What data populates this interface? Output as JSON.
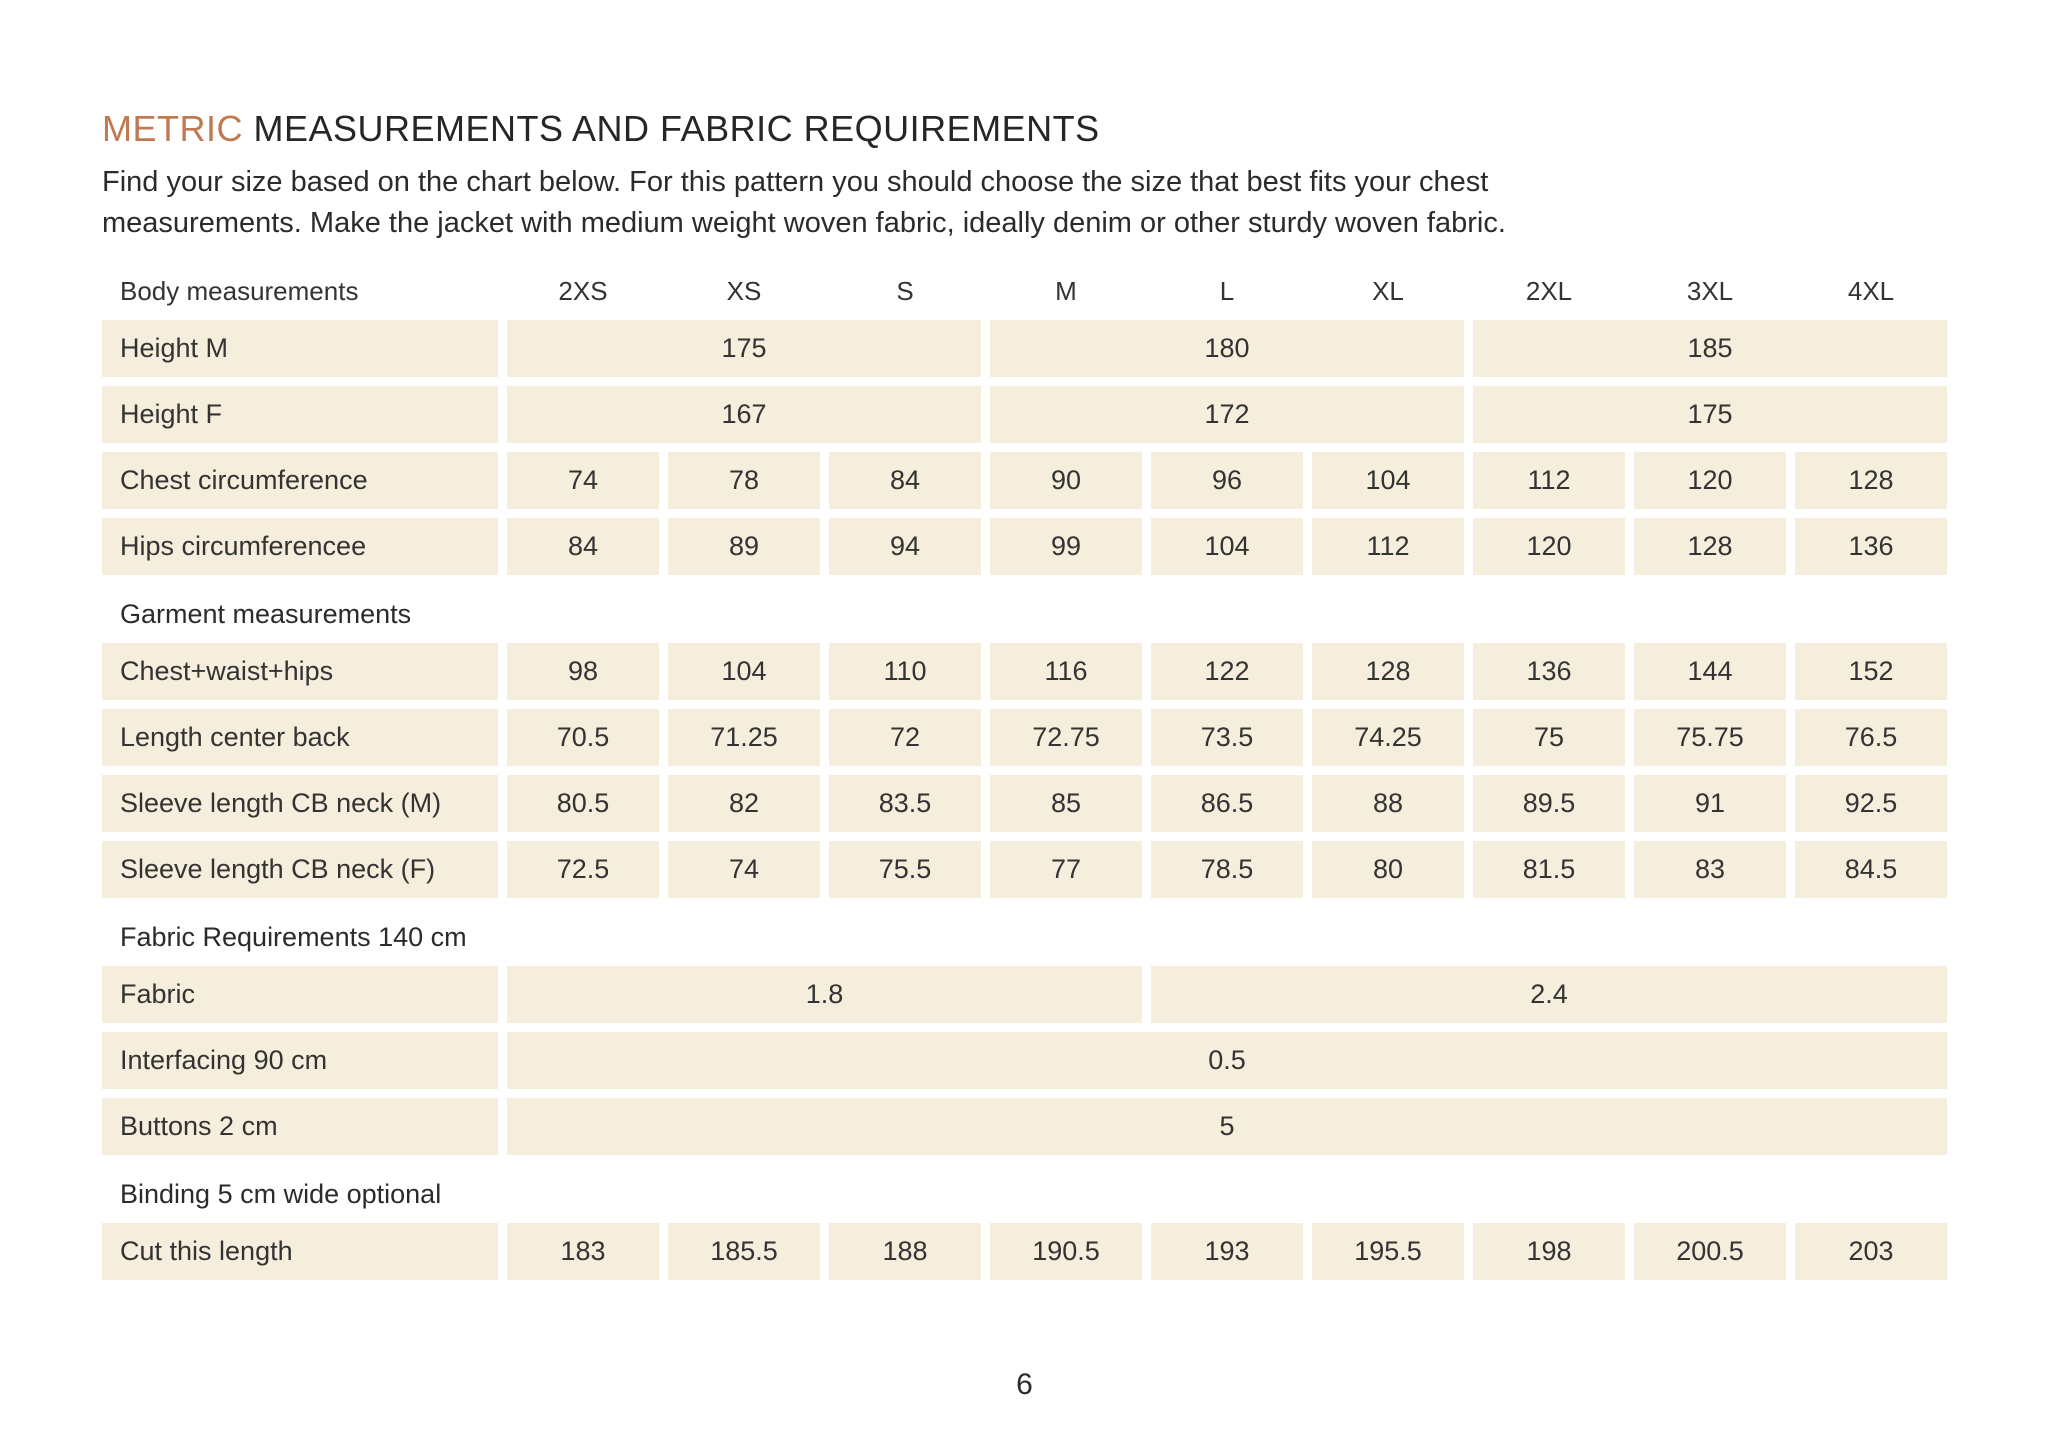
{
  "page": {
    "title": {
      "accent": "METRIC",
      "rest": " MEASUREMENTS AND FABRIC REQUIREMENTS"
    },
    "intro": {
      "line1": "Find your size based on the chart below. For this pattern you should choose the size that best fits your chest",
      "line2": "measurements. Make the jacket with medium weight woven fabric, ideally denim or other sturdy woven fabric."
    },
    "page_number": "6"
  },
  "colors": {
    "accent": "#bf7a52",
    "cell_bg": "#f5eedc",
    "text": "#2e2e2e"
  },
  "table": {
    "header": {
      "label": "Body measurements",
      "sizes": [
        "2XS",
        "XS",
        "S",
        "M",
        "L",
        "XL",
        "2XL",
        "3XL",
        "4XL"
      ]
    },
    "sections": [
      {
        "heading": null,
        "rows": [
          {
            "label": "Height M",
            "cells": [
              {
                "value": "175",
                "span": 3
              },
              {
                "value": "180",
                "span": 3
              },
              {
                "value": "185",
                "span": 3
              }
            ]
          },
          {
            "label": "Height F",
            "cells": [
              {
                "value": "167",
                "span": 3
              },
              {
                "value": "172",
                "span": 3
              },
              {
                "value": "175",
                "span": 3
              }
            ]
          },
          {
            "label": "Chest circumference",
            "cells": [
              {
                "value": "74"
              },
              {
                "value": "78"
              },
              {
                "value": "84"
              },
              {
                "value": "90"
              },
              {
                "value": "96"
              },
              {
                "value": "104"
              },
              {
                "value": "112"
              },
              {
                "value": "120"
              },
              {
                "value": "128"
              }
            ]
          },
          {
            "label": "Hips circumferencee",
            "cells": [
              {
                "value": "84"
              },
              {
                "value": "89"
              },
              {
                "value": "94"
              },
              {
                "value": "99"
              },
              {
                "value": "104"
              },
              {
                "value": "112"
              },
              {
                "value": "120"
              },
              {
                "value": "128"
              },
              {
                "value": "136"
              }
            ]
          }
        ]
      },
      {
        "heading": "Garment measurements",
        "rows": [
          {
            "label": "Chest+waist+hips",
            "cells": [
              {
                "value": "98"
              },
              {
                "value": "104"
              },
              {
                "value": "110"
              },
              {
                "value": "116"
              },
              {
                "value": "122"
              },
              {
                "value": "128"
              },
              {
                "value": "136"
              },
              {
                "value": "144"
              },
              {
                "value": "152"
              }
            ]
          },
          {
            "label": "Length center back",
            "cells": [
              {
                "value": "70.5"
              },
              {
                "value": "71.25"
              },
              {
                "value": "72"
              },
              {
                "value": "72.75"
              },
              {
                "value": "73.5"
              },
              {
                "value": "74.25"
              },
              {
                "value": "75"
              },
              {
                "value": "75.75"
              },
              {
                "value": "76.5"
              }
            ]
          },
          {
            "label": "Sleeve length CB neck (M)",
            "cells": [
              {
                "value": "80.5"
              },
              {
                "value": "82"
              },
              {
                "value": "83.5"
              },
              {
                "value": "85"
              },
              {
                "value": "86.5"
              },
              {
                "value": "88"
              },
              {
                "value": "89.5"
              },
              {
                "value": "91"
              },
              {
                "value": "92.5"
              }
            ]
          },
          {
            "label": "Sleeve length CB neck (F)",
            "cells": [
              {
                "value": "72.5"
              },
              {
                "value": "74"
              },
              {
                "value": "75.5"
              },
              {
                "value": "77"
              },
              {
                "value": "78.5"
              },
              {
                "value": "80"
              },
              {
                "value": "81.5"
              },
              {
                "value": "83"
              },
              {
                "value": "84.5"
              }
            ]
          }
        ]
      },
      {
        "heading": "Fabric Requirements 140 cm",
        "rows": [
          {
            "label": "Fabric",
            "cells": [
              {
                "value": "1.8",
                "span": 4
              },
              {
                "value": "2.4",
                "span": 5
              }
            ]
          },
          {
            "label": "Interfacing 90 cm",
            "cells": [
              {
                "value": "0.5",
                "span": 9
              }
            ]
          },
          {
            "label": "Buttons 2 cm",
            "cells": [
              {
                "value": "5",
                "span": 9
              }
            ]
          }
        ]
      },
      {
        "heading": "Binding 5 cm wide optional",
        "rows": [
          {
            "label": "Cut this length",
            "cells": [
              {
                "value": "183"
              },
              {
                "value": "185.5"
              },
              {
                "value": "188"
              },
              {
                "value": "190.5"
              },
              {
                "value": "193"
              },
              {
                "value": "195.5"
              },
              {
                "value": "198"
              },
              {
                "value": "200.5"
              },
              {
                "value": "203"
              }
            ]
          }
        ]
      }
    ]
  }
}
